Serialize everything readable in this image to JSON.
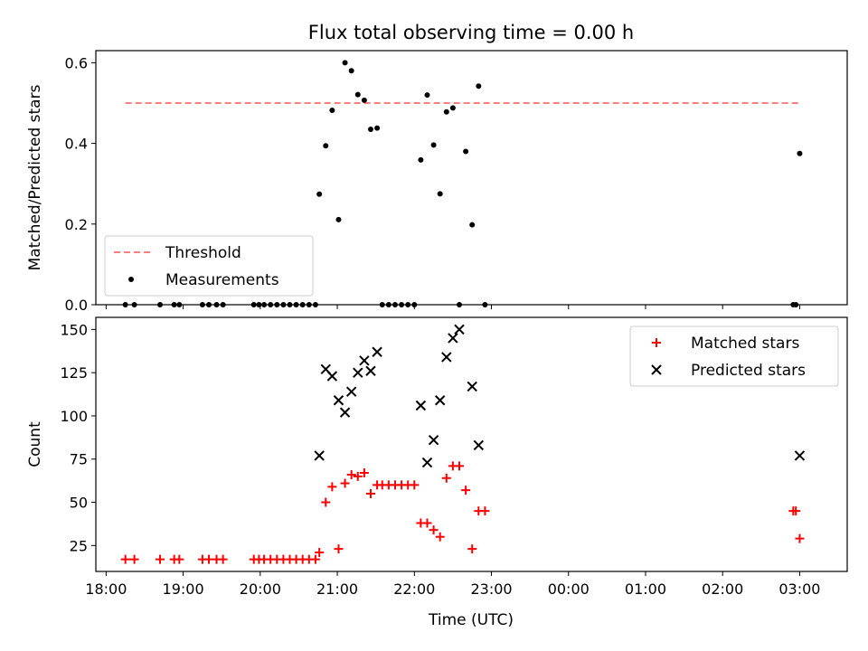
{
  "figure": {
    "title": "Flux total observing time = 0.00 h",
    "xlabel": "Time (UTC)"
  },
  "chart_data": [
    {
      "type": "scatter",
      "ylabel": "Matched/Predicted stars",
      "xlim": [
        "17:52",
        "03:37"
      ],
      "ylim": [
        0,
        0.63
      ],
      "yticks": [
        "0.0",
        "0.2",
        "0.4",
        "0.6"
      ],
      "grid": false,
      "legend_position": "lower-left",
      "series": [
        {
          "name": "Threshold",
          "kind": "dashed-line",
          "color": "#ff7f7f",
          "points": [
            [
              "18:15",
              0.5
            ],
            [
              "03:00",
              0.5
            ]
          ]
        },
        {
          "name": "Measurements",
          "kind": "dot",
          "color": "#000000",
          "points": [
            [
              "18:15",
              0
            ],
            [
              "18:22",
              0
            ],
            [
              "18:42",
              0
            ],
            [
              "18:53",
              0
            ],
            [
              "18:57",
              0
            ],
            [
              "19:15",
              0
            ],
            [
              "19:20",
              0
            ],
            [
              "19:26",
              0
            ],
            [
              "19:31",
              0
            ],
            [
              "19:55",
              0
            ],
            [
              "19:59",
              0
            ],
            [
              "20:03",
              0
            ],
            [
              "20:08",
              0
            ],
            [
              "20:13",
              0
            ],
            [
              "20:18",
              0
            ],
            [
              "20:23",
              0
            ],
            [
              "20:28",
              0
            ],
            [
              "20:33",
              0
            ],
            [
              "20:38",
              0
            ],
            [
              "20:43",
              0
            ],
            [
              "20:46",
              0.274
            ],
            [
              "20:51",
              0.394
            ],
            [
              "20:56",
              0.482
            ],
            [
              "21:01",
              0.211
            ],
            [
              "21:06",
              0.6
            ],
            [
              "21:11",
              0.58
            ],
            [
              "21:16",
              0.521
            ],
            [
              "21:21",
              0.507
            ],
            [
              "21:26",
              0.435
            ],
            [
              "21:31",
              0.438
            ],
            [
              "21:35",
              0
            ],
            [
              "21:40",
              0
            ],
            [
              "21:45",
              0
            ],
            [
              "21:50",
              0
            ],
            [
              "21:55",
              0
            ],
            [
              "22:00",
              0
            ],
            [
              "22:05",
              0.359
            ],
            [
              "22:10",
              0.52
            ],
            [
              "22:15",
              0.396
            ],
            [
              "22:20",
              0.275
            ],
            [
              "22:25",
              0.478
            ],
            [
              "22:30",
              0.488
            ],
            [
              "22:35",
              0
            ],
            [
              "22:40",
              0.38
            ],
            [
              "22:45",
              0.198
            ],
            [
              "22:50",
              0.542
            ],
            [
              "22:55",
              0
            ],
            [
              "02:55",
              0
            ],
            [
              "02:57",
              0
            ],
            [
              "03:00",
              0.375
            ]
          ]
        }
      ]
    },
    {
      "type": "scatter",
      "ylabel": "Count",
      "xlim": [
        "17:52",
        "03:37"
      ],
      "ylim": [
        10,
        157
      ],
      "yticks": [
        "25",
        "50",
        "75",
        "100",
        "125",
        "150"
      ],
      "xticks": [
        "18:00",
        "19:00",
        "20:00",
        "21:00",
        "22:00",
        "23:00",
        "00:00",
        "01:00",
        "02:00",
        "03:00"
      ],
      "grid": false,
      "legend_position": "upper-right",
      "series": [
        {
          "name": "Matched stars",
          "kind": "plus",
          "color": "#ff0000",
          "points": [
            [
              "18:15",
              17
            ],
            [
              "18:22",
              17
            ],
            [
              "18:42",
              17
            ],
            [
              "18:53",
              17
            ],
            [
              "18:57",
              17
            ],
            [
              "19:15",
              17
            ],
            [
              "19:20",
              17
            ],
            [
              "19:26",
              17
            ],
            [
              "19:31",
              17
            ],
            [
              "19:55",
              17
            ],
            [
              "19:59",
              17
            ],
            [
              "20:03",
              17
            ],
            [
              "20:08",
              17
            ],
            [
              "20:13",
              17
            ],
            [
              "20:18",
              17
            ],
            [
              "20:23",
              17
            ],
            [
              "20:28",
              17
            ],
            [
              "20:33",
              17
            ],
            [
              "20:38",
              17
            ],
            [
              "20:43",
              17
            ],
            [
              "20:46",
              21
            ],
            [
              "20:51",
              50
            ],
            [
              "20:56",
              59
            ],
            [
              "21:01",
              23
            ],
            [
              "21:06",
              61
            ],
            [
              "21:11",
              66
            ],
            [
              "21:16",
              65
            ],
            [
              "21:21",
              67
            ],
            [
              "21:26",
              55
            ],
            [
              "21:31",
              60
            ],
            [
              "21:35",
              60
            ],
            [
              "21:40",
              60
            ],
            [
              "21:45",
              60
            ],
            [
              "21:50",
              60
            ],
            [
              "21:55",
              60
            ],
            [
              "22:00",
              60
            ],
            [
              "22:05",
              38
            ],
            [
              "22:10",
              38
            ],
            [
              "22:15",
              34
            ],
            [
              "22:20",
              30
            ],
            [
              "22:25",
              64
            ],
            [
              "22:30",
              71
            ],
            [
              "22:35",
              71
            ],
            [
              "22:40",
              57
            ],
            [
              "22:45",
              23
            ],
            [
              "22:50",
              45
            ],
            [
              "22:55",
              45
            ],
            [
              "02:55",
              45
            ],
            [
              "02:57",
              45
            ],
            [
              "03:00",
              29
            ]
          ]
        },
        {
          "name": "Predicted stars",
          "kind": "x",
          "color": "#000000",
          "points": [
            [
              "20:46",
              77
            ],
            [
              "20:51",
              127
            ],
            [
              "20:56",
              123
            ],
            [
              "21:01",
              109
            ],
            [
              "21:06",
              102
            ],
            [
              "21:11",
              114
            ],
            [
              "21:16",
              125
            ],
            [
              "21:21",
              132
            ],
            [
              "21:26",
              126
            ],
            [
              "21:31",
              137
            ],
            [
              "22:05",
              106
            ],
            [
              "22:10",
              73
            ],
            [
              "22:15",
              86
            ],
            [
              "22:20",
              109
            ],
            [
              "22:25",
              134
            ],
            [
              "22:30",
              145
            ],
            [
              "22:35",
              150
            ],
            [
              "22:45",
              117
            ],
            [
              "22:50",
              83
            ],
            [
              "03:00",
              77
            ]
          ]
        }
      ]
    }
  ]
}
